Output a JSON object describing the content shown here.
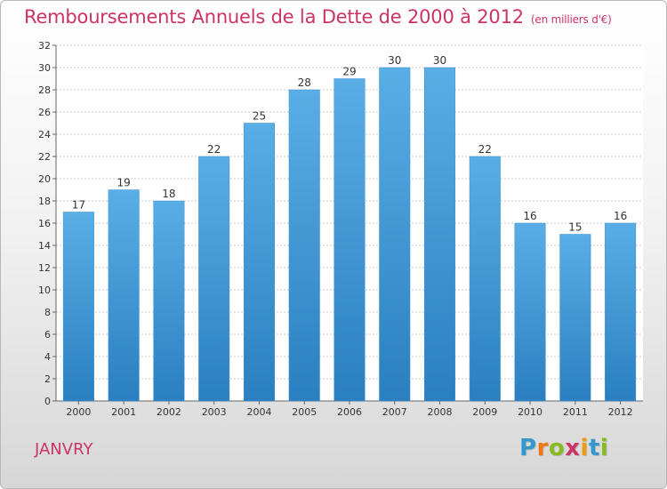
{
  "header": {
    "title": "Remboursements Annuels de la Dette de 2000 à 2012",
    "unit": "(en milliers d'€)"
  },
  "footer": {
    "commune": "JANVRY",
    "brand_letters": [
      {
        "ch": "P",
        "color": "#3399cc"
      },
      {
        "ch": "r",
        "color": "#ee7711"
      },
      {
        "ch": "o",
        "color": "#88bb22"
      },
      {
        "ch": "x",
        "color": "#cc3366"
      },
      {
        "ch": "i",
        "color": "#ee9911"
      },
      {
        "ch": "t",
        "color": "#3399cc"
      },
      {
        "ch": "i",
        "color": "#88bb22"
      }
    ]
  },
  "colors": {
    "bar_top": "#5aaee6",
    "bar_bottom": "#2a7fc0",
    "title": "#cc3366",
    "grid": "#c8c8c8"
  },
  "chart_data": {
    "type": "bar",
    "title": "Remboursements Annuels de la Dette de 2000 à 2012",
    "subtitle": "(en milliers d'€)",
    "categories": [
      "2000",
      "2001",
      "2002",
      "2003",
      "2004",
      "2005",
      "2006",
      "2007",
      "2008",
      "2009",
      "2010",
      "2011",
      "2012"
    ],
    "values": [
      17,
      19,
      18,
      22,
      25,
      28,
      29,
      30,
      30,
      22,
      16,
      15,
      16
    ],
    "ylim": [
      0,
      32
    ],
    "yticks": [
      0,
      2,
      4,
      6,
      8,
      10,
      12,
      14,
      16,
      18,
      20,
      22,
      24,
      26,
      28,
      30,
      32
    ],
    "grid": true,
    "legend": "none"
  }
}
